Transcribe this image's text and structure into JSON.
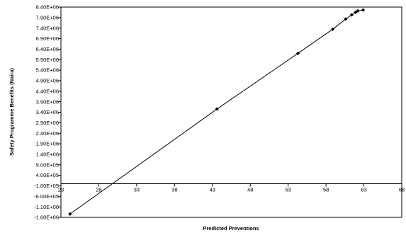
{
  "chart_data": {
    "type": "scatter",
    "xlabel": "Predicted Preventions",
    "ylabel": "Safety Programme Benefits (Naira)",
    "xlim": [
      23,
      68
    ],
    "ylim": [
      -1600000,
      8400000
    ],
    "x_tick_values": [
      23,
      28,
      33,
      38,
      43,
      48,
      53,
      58,
      63,
      68
    ],
    "x_tick_labels": [
      "23",
      "28",
      "33",
      "38",
      "43",
      "48",
      "53",
      "58",
      "63",
      "68"
    ],
    "y_tick_values": [
      8400000,
      7900000,
      7400000,
      6900000,
      6400000,
      5900000,
      5400000,
      4900000,
      4400000,
      3900000,
      3400000,
      2900000,
      2400000,
      1900000,
      1400000,
      900000,
      400000,
      -100000,
      -600000,
      -1100000,
      -1600000
    ],
    "y_tick_labels": [
      "8.40E+06",
      "7.90E+06",
      "7.40E+06",
      "6.90E+06",
      "6.40E+06",
      "5.90E+06",
      "5.40E+06",
      "4.90E+06",
      "4.40E+06",
      "3.90E+06",
      "3.40E+06",
      "2.90E+06",
      "2.40E+06",
      "1.90E+06",
      "1.40E+06",
      "9.00E+05",
      "4.00E+05",
      "-1.00E+05",
      "-6.00E+05",
      "-1.10E+06",
      "-1.60E+06"
    ],
    "x_axis_crosses_at": 0,
    "marker": "diamond",
    "line": true,
    "grid": false,
    "legend": "none",
    "series": [
      {
        "x": [
          24.2,
          43.6,
          54.3,
          58.9,
          60.6,
          61.4,
          61.9,
          62.2,
          62.9
        ],
        "y": [
          -1440000,
          3550000,
          6200000,
          7350000,
          7830000,
          8030000,
          8150000,
          8220000,
          8260000
        ]
      }
    ],
    "colors": {
      "line": "#000000",
      "marker": "#000000",
      "axes": "#000000",
      "frame": "#000000"
    }
  }
}
